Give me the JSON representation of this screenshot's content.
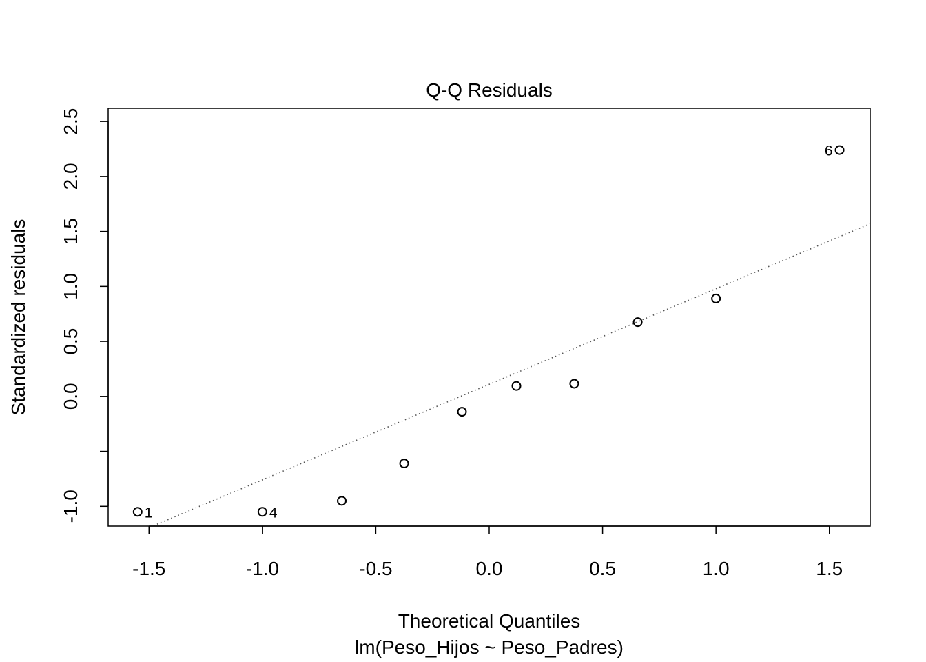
{
  "chart_data": {
    "type": "scatter",
    "title": "Q-Q Residuals",
    "xlabel": "Theoretical Quantiles",
    "subtitle": "lm(Peso_Hijos ~ Peso_Padres)",
    "ylabel": "Standardized residuals",
    "xlim": [
      -1.68,
      1.68
    ],
    "ylim": [
      -1.18,
      2.62
    ],
    "x_ticks": [
      {
        "value": -1.5,
        "label": "-1.5"
      },
      {
        "value": -1.0,
        "label": "-1.0"
      },
      {
        "value": -0.5,
        "label": "-0.5"
      },
      {
        "value": 0.0,
        "label": "0.0"
      },
      {
        "value": 0.5,
        "label": "0.5"
      },
      {
        "value": 1.0,
        "label": "1.0"
      },
      {
        "value": 1.5,
        "label": "1.5"
      }
    ],
    "y_ticks": [
      {
        "value": -1.0,
        "label": "-1.0"
      },
      {
        "value": -0.5,
        "label": ""
      },
      {
        "value": 0.0,
        "label": "0.0"
      },
      {
        "value": 0.5,
        "label": "0.5"
      },
      {
        "value": 1.0,
        "label": "1.0"
      },
      {
        "value": 1.5,
        "label": "1.5"
      },
      {
        "value": 2.0,
        "label": "2.0"
      },
      {
        "value": 2.5,
        "label": "2.5"
      }
    ],
    "points": [
      {
        "x": -1.55,
        "y": -1.05,
        "label": "1"
      },
      {
        "x": -1.0,
        "y": -1.05,
        "label": "4"
      },
      {
        "x": -0.65,
        "y": -0.95,
        "label": ""
      },
      {
        "x": -0.375,
        "y": -0.61,
        "label": ""
      },
      {
        "x": -0.12,
        "y": -0.14,
        "label": ""
      },
      {
        "x": 0.12,
        "y": 0.095,
        "label": ""
      },
      {
        "x": 0.375,
        "y": 0.115,
        "label": ""
      },
      {
        "x": 0.655,
        "y": 0.675,
        "label": ""
      },
      {
        "x": 1.0,
        "y": 0.89,
        "label": ""
      },
      {
        "x": 1.545,
        "y": 2.24,
        "label": "6"
      }
    ],
    "reference_line": {
      "type": "dotted",
      "x": [
        -1.68,
        1.68
      ],
      "y": [
        -1.35,
        1.57
      ]
    },
    "grid": false,
    "legend": "none"
  }
}
